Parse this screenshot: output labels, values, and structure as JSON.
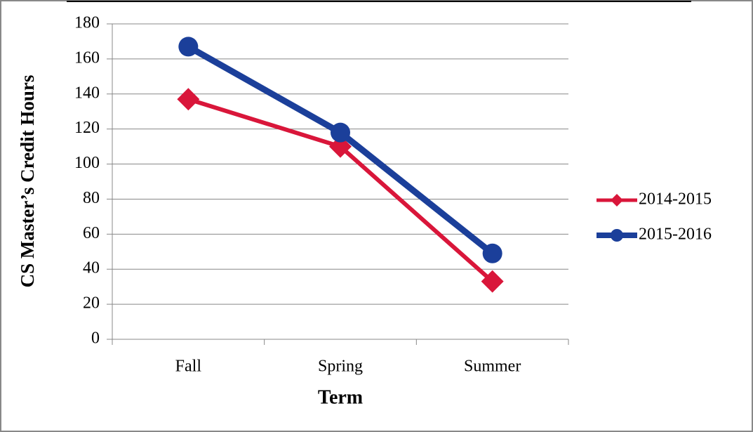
{
  "chart_data": {
    "type": "line",
    "y_label": "CS Master’s Credit Hours",
    "x_label": "Term",
    "categories": [
      "Fall",
      "Spring",
      "Summer"
    ],
    "series": [
      {
        "name": "2014-2015",
        "color": "#d9163a",
        "marker": "diamond",
        "values": [
          137,
          110,
          33
        ]
      },
      {
        "name": "2015-2016",
        "color": "#1b3f9a",
        "marker": "circle",
        "values": [
          167,
          118,
          49
        ]
      }
    ],
    "ylim": [
      0,
      180
    ],
    "yticks": [
      0,
      20,
      40,
      60,
      80,
      100,
      120,
      140,
      160,
      180
    ],
    "grid": true,
    "legend": "right"
  }
}
